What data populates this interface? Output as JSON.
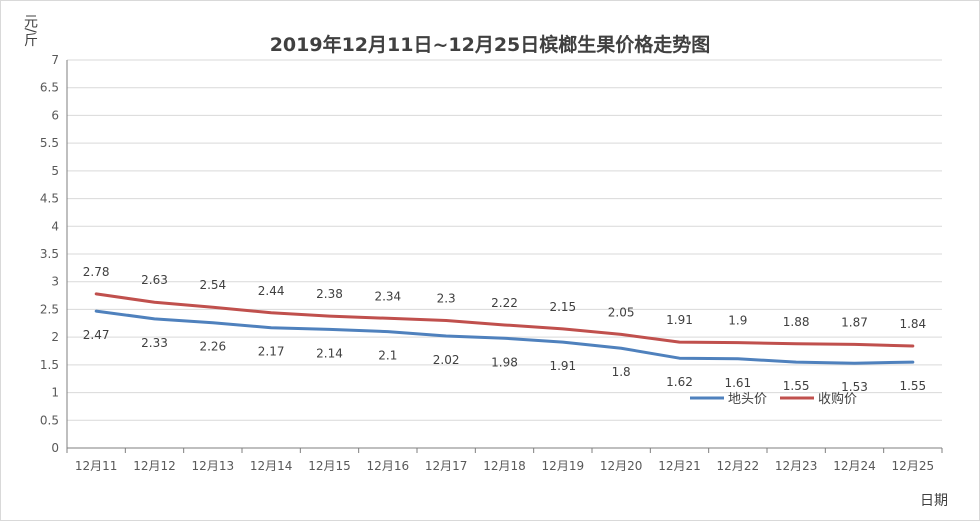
{
  "chart_data": {
    "type": "line",
    "title": "2019年12月11日~12月25日槟榔生果价格走势图",
    "ylabel": "元/斤",
    "xlabel": "日期",
    "categories": [
      "12月11",
      "12月12",
      "12月13",
      "12月14",
      "12月15",
      "12月16",
      "12月17",
      "12月18",
      "12月19",
      "12月20",
      "12月21",
      "12月22",
      "12月23",
      "12月24",
      "12月25"
    ],
    "ylim": [
      0,
      7
    ],
    "yticks": [
      "0",
      "0.5",
      "1",
      "1.5",
      "2",
      "2.5",
      "3",
      "3.5",
      "4",
      "4.5",
      "5",
      "5.5",
      "6",
      "6.5",
      "7"
    ],
    "grid": true,
    "legend_position": "inside-bottom-right",
    "series": [
      {
        "name": "地头价",
        "color": "#4f81bd",
        "values": [
          2.47,
          2.33,
          2.26,
          2.17,
          2.14,
          2.1,
          2.02,
          1.98,
          1.91,
          1.8,
          1.62,
          1.61,
          1.55,
          1.53,
          1.55
        ]
      },
      {
        "name": "收购价",
        "color": "#c0504d",
        "values": [
          2.78,
          2.63,
          2.54,
          2.44,
          2.38,
          2.34,
          2.3,
          2.22,
          2.15,
          2.05,
          1.91,
          1.9,
          1.88,
          1.87,
          1.84
        ]
      }
    ]
  }
}
